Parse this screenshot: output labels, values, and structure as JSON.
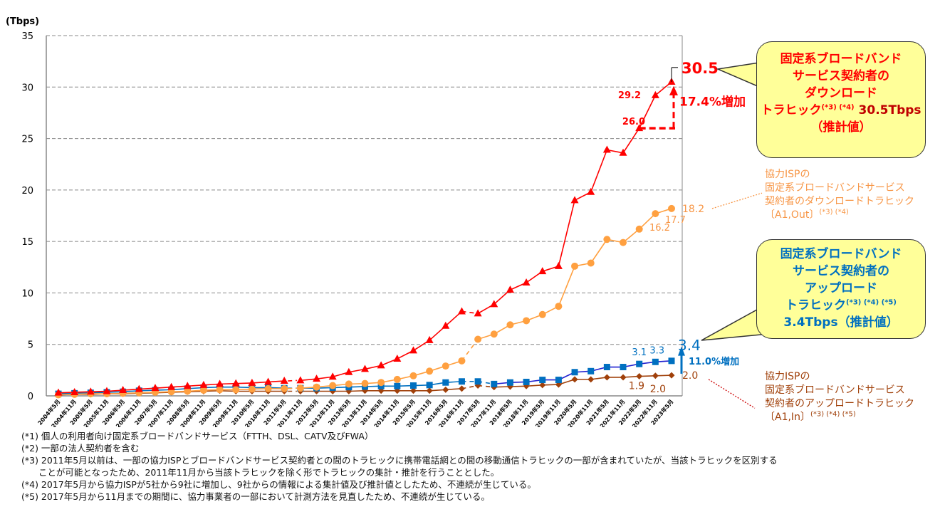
{
  "chart_data": {
    "type": "line",
    "ylabel": "(Tbps)",
    "ylim": [
      0,
      35
    ],
    "yticks": [
      0,
      5,
      10,
      15,
      20,
      25,
      30,
      35
    ],
    "grid": "horizontal dashed",
    "categories": [
      "2004年5月",
      "2004年11月",
      "2005年5月",
      "2005年11月",
      "2006年5月",
      "2006年11月",
      "2007年5月",
      "2007年11月",
      "2008年5月",
      "2008年11月",
      "2009年5月",
      "2009年11月",
      "2010年5月",
      "2010年11月",
      "2011年5月",
      "2011年11月",
      "2012年5月",
      "2012年11月",
      "2013年5月",
      "2013年11月",
      "2014年5月",
      "2014年11月",
      "2015年5月",
      "2015年11月",
      "2016年5月",
      "2016年11月",
      "2017年5月",
      "2017年11月",
      "2018年5月",
      "2018年11月",
      "2019年5月",
      "2019年11月",
      "2020年5月",
      "2020年11月",
      "2021年5月",
      "2021年11月",
      "2022年5月",
      "2022年11月",
      "2023年5月"
    ],
    "series": [
      {
        "key": "fixed_down",
        "color": "#ff0000",
        "marker": "triangle",
        "values": [
          0.3,
          0.35,
          0.4,
          0.45,
          0.55,
          0.65,
          0.75,
          0.85,
          0.95,
          1.05,
          1.15,
          1.2,
          1.25,
          1.35,
          1.45,
          1.5,
          1.65,
          1.85,
          2.3,
          2.6,
          2.95,
          3.6,
          4.4,
          5.4,
          6.8,
          8.2,
          8.0,
          8.9,
          10.3,
          11.0,
          12.1,
          12.6,
          19.0,
          19.8,
          23.9,
          23.6,
          26.0,
          29.2,
          30.5
        ],
        "dashed_segments": [
          [
            "2011年5月",
            "2011年11月"
          ],
          [
            "2016年11月",
            "2017年5月"
          ]
        ]
      },
      {
        "key": "isp_down",
        "color": "#ffa040",
        "marker": "circle",
        "values": [
          0.1,
          0.15,
          0.2,
          0.2,
          0.25,
          0.3,
          0.35,
          0.4,
          0.45,
          0.55,
          0.6,
          0.6,
          0.65,
          0.7,
          0.7,
          0.75,
          0.85,
          1.0,
          1.15,
          1.2,
          1.3,
          1.6,
          1.95,
          2.4,
          2.9,
          3.4,
          5.5,
          6.0,
          6.9,
          7.3,
          7.9,
          8.7,
          12.6,
          12.9,
          15.2,
          14.9,
          16.2,
          17.7,
          18.2
        ],
        "dashed_segments": [
          [
            "2011年5月",
            "2011年11月"
          ],
          [
            "2016年11月",
            "2017年5月"
          ]
        ]
      },
      {
        "key": "fixed_up",
        "color": "#0070c0",
        "marker": "square",
        "values": [
          0.2,
          0.25,
          0.3,
          0.35,
          0.4,
          0.5,
          0.55,
          0.6,
          0.7,
          0.8,
          0.85,
          0.85,
          0.8,
          0.8,
          0.75,
          0.75,
          0.75,
          0.8,
          0.85,
          0.9,
          0.95,
          0.95,
          1.0,
          1.05,
          1.3,
          1.4,
          1.4,
          1.15,
          1.3,
          1.35,
          1.55,
          1.55,
          2.3,
          2.4,
          2.8,
          2.8,
          3.1,
          3.3,
          3.4
        ],
        "dashed_segments": [
          [
            "2011年5月",
            "2011年11月"
          ],
          [
            "2016年11月",
            "2017年5月"
          ],
          [
            "2017年5月",
            "2017年11月"
          ]
        ]
      },
      {
        "key": "isp_up",
        "color": "#a0400a",
        "marker": "diamond",
        "values": [
          0.1,
          0.15,
          0.15,
          0.2,
          0.2,
          0.25,
          0.3,
          0.35,
          0.4,
          0.45,
          0.5,
          0.45,
          0.45,
          0.45,
          0.45,
          0.45,
          0.45,
          0.45,
          0.45,
          0.5,
          0.5,
          0.5,
          0.5,
          0.5,
          0.6,
          0.7,
          1.0,
          0.85,
          0.9,
          0.95,
          1.05,
          1.1,
          1.6,
          1.6,
          1.8,
          1.8,
          1.9,
          1.95,
          2.0
        ],
        "dashed_segments": [
          [
            "2011年5月",
            "2011年11月"
          ],
          [
            "2016年11月",
            "2017年5月"
          ],
          [
            "2017年5月",
            "2017年11月"
          ]
        ]
      }
    ],
    "data_labels": {
      "red_2021": "26.0",
      "red_2022": "29.2",
      "red_last": "30.5",
      "orange_2022a": "16.2",
      "orange_2022b": "17.7",
      "orange_last": "18.2",
      "blue_2022a": "3.1",
      "blue_2022b": "3.3",
      "blue_last": "3.4",
      "brown_2022a": "1.9",
      "brown_2022b": "2.0",
      "brown_last": "2.0"
    },
    "annotations": {
      "down_growth": "17.4%増加",
      "up_growth": "11.0%増加"
    }
  },
  "callouts": {
    "fixed_down": {
      "lines": [
        "固定系ブロードバンド",
        "サービス契約者の",
        "ダウンロード"
      ],
      "line4": "トラヒック",
      "sup": "(*3) (*4)",
      "value": "30.5Tbps",
      "line5": "（推計値）"
    },
    "fixed_up": {
      "lines": [
        "固定系ブロードバンド",
        "サービス契約者の",
        "アップロード"
      ],
      "line4": "トラヒック",
      "sup": "(*3) (*4) (*5)",
      "value": "3.4Tbps",
      "line5": "（推計値）"
    },
    "isp_down": {
      "text": "協力ISPの\n固定系ブロードバンドサービス\n契約者のダウンロードトラヒック\n〔A1,Out〕",
      "sup": "(*3) (*4)"
    },
    "isp_up": {
      "text": "協力ISPの\n固定系ブロードバンドサービス\n契約者のアップロードトラヒック\n〔A1,In〕",
      "sup": "(*3) (*4) (*5)"
    }
  },
  "footnotes": [
    "(*1) 個人の利用者向け固定系ブロードバンドサービス（FTTH、DSL、CATV及びFWA）",
    "(*2) 一部の法人契約者を含む",
    "(*3) 2011年5月以前は、一部の協力ISPとブロードバンドサービス契約者との間のトラヒックに携帯電話網との間の移動通信トラヒックの一部が含まれていたが、当該トラヒックを区別する",
    "      ことが可能となったため、2011年11月から当該トラヒックを除く形でトラヒックの集計・推計を行うこととした。",
    "(*4) 2017年5月から協力ISPが5社から9社に増加し、9社からの情報による集計値及び推計値としたため、不連続が生じている。",
    "(*5) 2017年5月から11月までの期間に、協力事業者の一部において計測方法を見直したため、不連続が生じている。"
  ]
}
